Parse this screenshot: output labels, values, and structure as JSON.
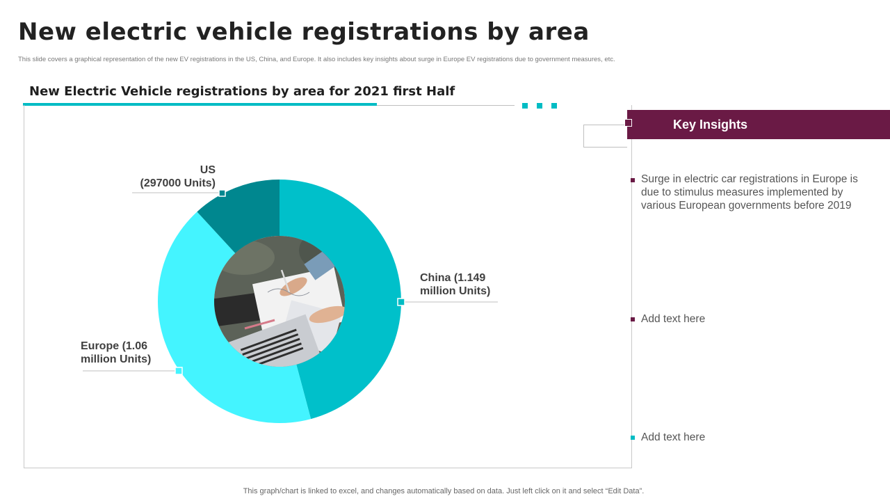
{
  "page": {
    "title": "New electric vehicle registrations by area",
    "subtitle": "This slide covers a graphical representation of the new EV registrations in the US, China, and Europe. It also includes key insights about surge in Europe EV registrations due to government measures, etc.",
    "footer": "This graph/chart is linked to excel, and changes automatically based on data. Just left click on it and select “Edit Data”."
  },
  "chart_data": {
    "type": "pie",
    "variant": "donut",
    "title": "New Electric Vehicle registrations by area for 2021 first Half",
    "unit": "Units",
    "center_image": "photo-hands-writing-laptop",
    "slices": [
      {
        "name": "China",
        "value": 1149000,
        "label_line1": "China  (1.149",
        "label_line2": "million Units)",
        "color": "#00C0CA"
      },
      {
        "name": "Europe",
        "value": 1060000,
        "label_line1": "Europe  (1.06",
        "label_line2": "million Units)",
        "color": "#44F4FF"
      },
      {
        "name": "US",
        "value": 297000,
        "label_line1": "US",
        "label_line2": "(297000 Units)",
        "color": "#00878F"
      }
    ]
  },
  "key_insights": {
    "header": "Key Insights",
    "items": [
      {
        "text": "Surge in electric car registrations in Europe is due to stimulus measures implemented by various European governments  before 2019",
        "bullet_color": "#6A1A45"
      },
      {
        "text": "Add text here",
        "bullet_color": "#6A1A45"
      },
      {
        "text": "Add text here",
        "bullet_color": "#00BCC4"
      }
    ]
  },
  "colors": {
    "accent_teal": "#00BCC4",
    "accent_plum": "#6A1A45",
    "header_bg": "#6A1A45"
  }
}
